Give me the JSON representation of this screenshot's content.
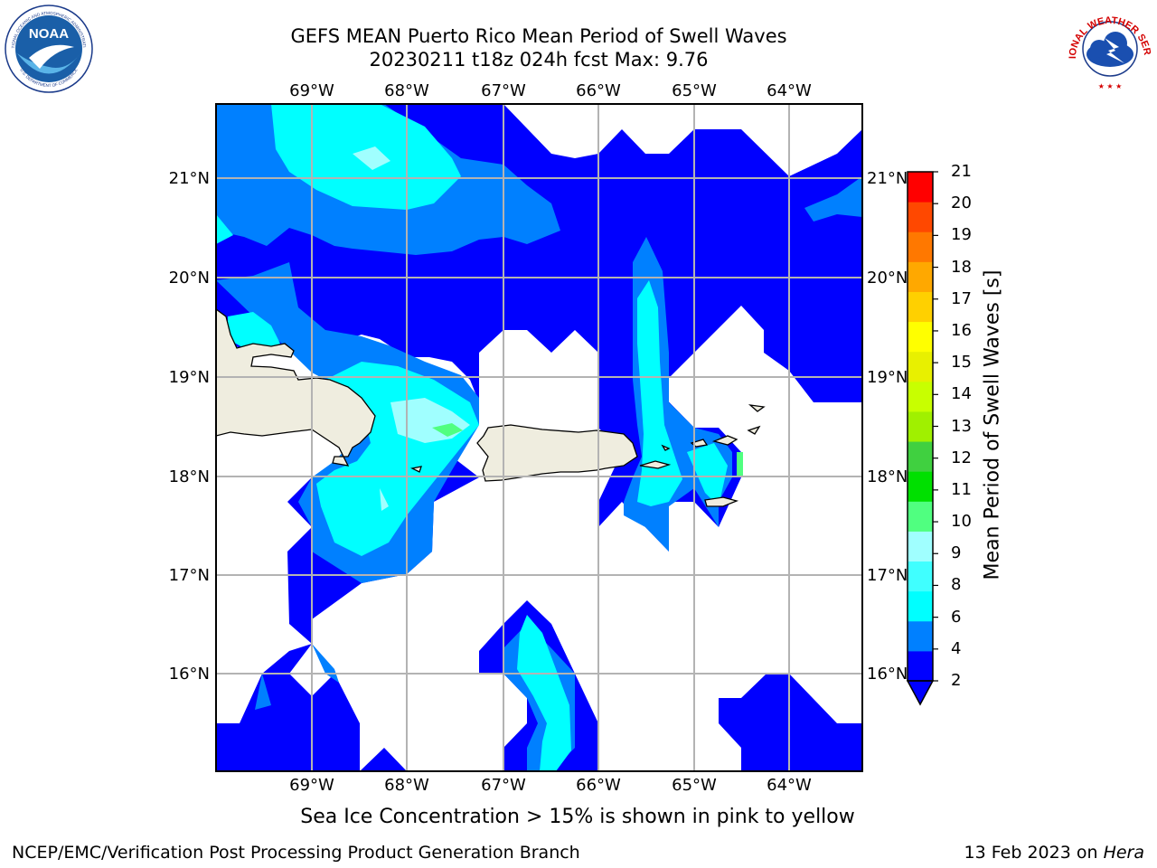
{
  "header": {
    "title": "GEFS MEAN Puerto Rico Mean Period of Swell Waves",
    "subtitle": "20230211 t18z 024h fcst   Max: 9.76"
  },
  "logos": {
    "noaa_text": "NOAA",
    "noaa_ring_top": "NATIONAL OCEANIC AND ATMOSPHERIC ADMINISTRATION",
    "noaa_ring_bottom": "U.S. DEPARTMENT OF COMMERCE",
    "nws_ring": "NATIONAL WEATHER SERVICE"
  },
  "map": {
    "lon_labels": [
      "69°W",
      "68°W",
      "67°W",
      "66°W",
      "65°W",
      "64°W"
    ],
    "lat_labels": [
      "21°N",
      "20°N",
      "19°N",
      "18°N",
      "17°N",
      "16°N"
    ],
    "land_color": "#efeddf",
    "ocean_no_data_color": "#ffffff",
    "grid_color": "#b3b3b3"
  },
  "colorbar": {
    "title": "Mean Period of Swell Waves [s]",
    "ticks": [
      "2",
      "4",
      "6",
      "8",
      "9",
      "10",
      "11",
      "12",
      "13",
      "14",
      "15",
      "16",
      "17",
      "18",
      "19",
      "20",
      "21"
    ],
    "colors": [
      "#0000ff",
      "#0080ff",
      "#00ffff",
      "#40ffff",
      "#a0ffff",
      "#50ff80",
      "#00e000",
      "#40d040",
      "#a0f000",
      "#c8ff00",
      "#e8f000",
      "#ffff00",
      "#ffd000",
      "#ffa800",
      "#ff7800",
      "#ff4800",
      "#ff0000"
    ],
    "extend_color": "#0000ff"
  },
  "caption": "Sea Ice Concentration > 15% is shown in pink to yellow",
  "footer": {
    "left": "NCEP/EMC/Verification Post Processing Product Generation Branch",
    "right_date": "13 Feb 2023 on",
    "right_host": "Hera"
  }
}
